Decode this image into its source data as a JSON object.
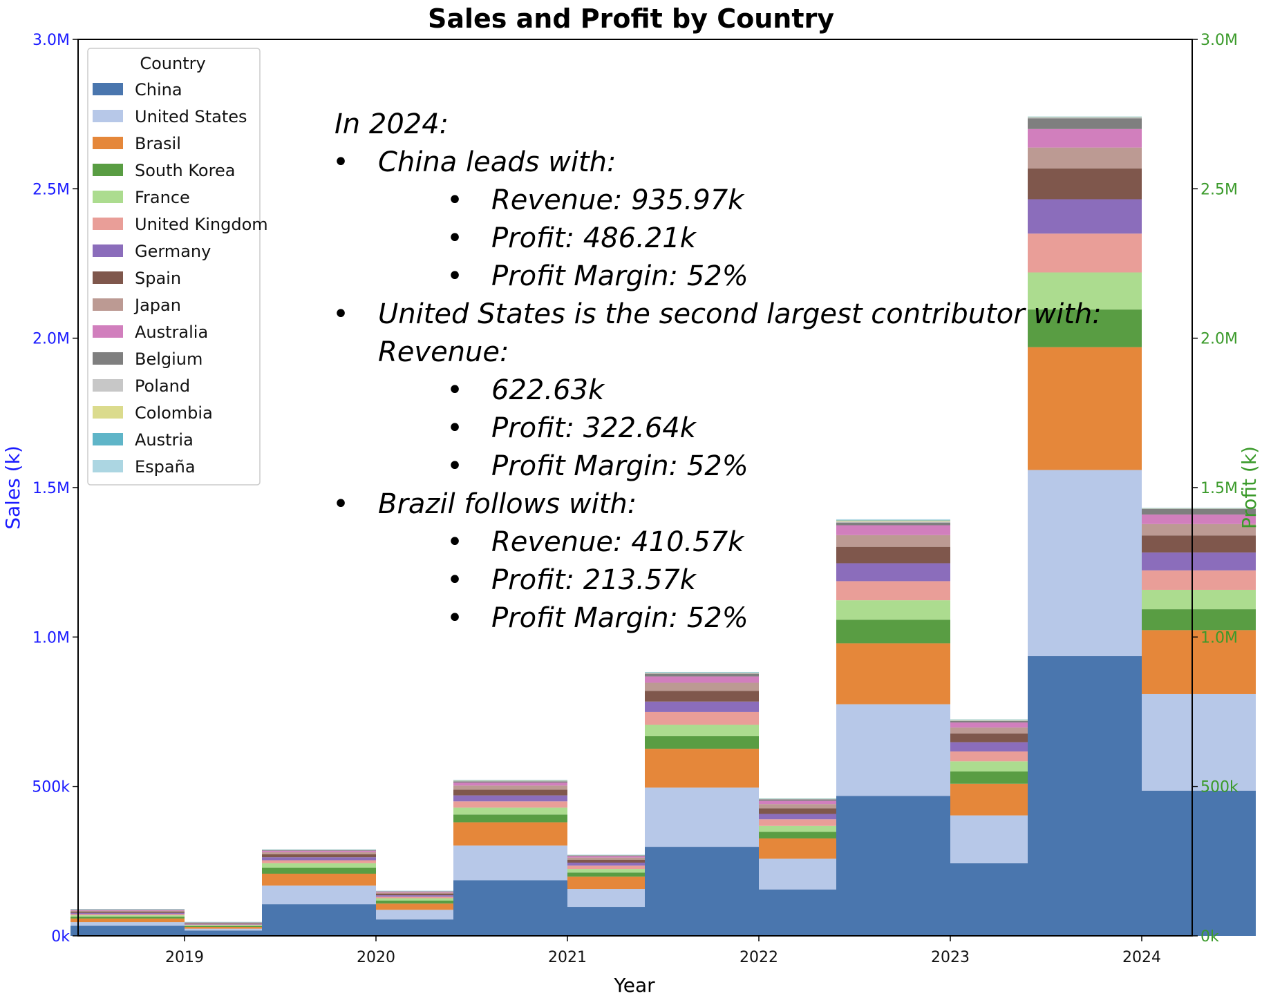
{
  "chart_data": {
    "type": "bar",
    "subtype": "grouped-stacked",
    "title": "Sales and Profit by Country",
    "xlabel": "Year",
    "ylabel_left": "Sales (k)",
    "ylabel_right": "Profit (k)",
    "left_axis_color": "#1a1aff",
    "right_axis_color": "#3a9a2a",
    "ylim": [
      0,
      3000000
    ],
    "yticks_left": [
      {
        "value": 0,
        "label": "0k"
      },
      {
        "value": 500000,
        "label": "500k"
      },
      {
        "value": 1000000,
        "label": "1.0M"
      },
      {
        "value": 1500000,
        "label": "1.5M"
      },
      {
        "value": 2000000,
        "label": "2.0M"
      },
      {
        "value": 2500000,
        "label": "2.5M"
      },
      {
        "value": 3000000,
        "label": "3.0M"
      }
    ],
    "yticks_right": [
      {
        "value": 0,
        "label": "0k"
      },
      {
        "value": 500000,
        "label": "500k"
      },
      {
        "value": 1000000,
        "label": "1.0M"
      },
      {
        "value": 1500000,
        "label": "1.5M"
      },
      {
        "value": 2000000,
        "label": "2.0M"
      },
      {
        "value": 2500000,
        "label": "2.5M"
      },
      {
        "value": 3000000,
        "label": "3.0M"
      }
    ],
    "categories": [
      "2019",
      "2020",
      "2021",
      "2022",
      "2023",
      "2024"
    ],
    "legend_title": "Country",
    "legend_position": "top-left",
    "countries": [
      {
        "name": "China",
        "color": "#4a76ae"
      },
      {
        "name": "United States",
        "color": "#b7c8e8"
      },
      {
        "name": "Brasil",
        "color": "#e5873a"
      },
      {
        "name": "South Korea",
        "color": "#599d43"
      },
      {
        "name": "France",
        "color": "#acdc8f"
      },
      {
        "name": "United Kingdom",
        "color": "#e99e98"
      },
      {
        "name": "Germany",
        "color": "#8b6dbb"
      },
      {
        "name": "Spain",
        "color": "#7f574c"
      },
      {
        "name": "Japan",
        "color": "#bc9a93"
      },
      {
        "name": "Australia",
        "color": "#d17fbd"
      },
      {
        "name": "Belgium",
        "color": "#7f7f7f"
      },
      {
        "name": "Poland",
        "color": "#c7c7c7"
      },
      {
        "name": "Colombia",
        "color": "#dbdb8d"
      },
      {
        "name": "Austria",
        "color": "#5fb5c8"
      },
      {
        "name": "España",
        "color": "#acd6e2"
      }
    ],
    "sales": [
      [
        34000,
        106000,
        186000,
        298000,
        468000,
        936000
      ],
      [
        12000,
        62000,
        116000,
        198000,
        307000,
        623000
      ],
      [
        12000,
        40000,
        78000,
        130000,
        204000,
        411000
      ],
      [
        6000,
        20000,
        26000,
        42000,
        79000,
        126000
      ],
      [
        5000,
        15000,
        23000,
        38000,
        65000,
        124000
      ],
      [
        4000,
        10000,
        21000,
        43000,
        64000,
        130000
      ],
      [
        4000,
        10000,
        20000,
        35000,
        60000,
        115000
      ],
      [
        4000,
        10000,
        19000,
        36000,
        55000,
        103000
      ],
      [
        3000,
        7000,
        14000,
        27000,
        39000,
        70000
      ],
      [
        3000,
        5000,
        10000,
        21000,
        33000,
        62000
      ],
      [
        1000,
        2000,
        4000,
        9000,
        9000,
        36000
      ],
      [
        500,
        1000,
        2000,
        3000,
        4000,
        3000
      ],
      [
        500,
        500,
        1000,
        1000,
        3000,
        1000
      ],
      [
        500,
        500,
        1000,
        1000,
        2000,
        1000
      ],
      [
        500,
        500,
        1000,
        1000,
        2000,
        1000
      ]
    ],
    "profit": [
      [
        18000,
        55000,
        97000,
        155000,
        243000,
        486000
      ],
      [
        6000,
        32000,
        60000,
        103000,
        160000,
        323000
      ],
      [
        6000,
        21000,
        41000,
        68000,
        106000,
        214000
      ],
      [
        3000,
        10000,
        14000,
        22000,
        41000,
        70000
      ],
      [
        3000,
        8000,
        12000,
        20000,
        34000,
        65000
      ],
      [
        2000,
        5000,
        11000,
        22000,
        33000,
        65000
      ],
      [
        2000,
        5000,
        10000,
        18000,
        31000,
        60000
      ],
      [
        2000,
        5000,
        10000,
        19000,
        29000,
        57000
      ],
      [
        1500,
        4000,
        7000,
        14000,
        20000,
        38000
      ],
      [
        1500,
        3000,
        5000,
        11000,
        17000,
        32000
      ],
      [
        500,
        1000,
        2000,
        5000,
        5000,
        19000
      ],
      [
        300,
        500,
        1000,
        1500,
        2000,
        1500
      ],
      [
        300,
        500,
        500,
        500,
        1500,
        500
      ],
      [
        300,
        500,
        500,
        500,
        1000,
        500
      ],
      [
        300,
        500,
        500,
        500,
        1000,
        500
      ]
    ],
    "annotation": [
      {
        "level": 0,
        "text": "In 2024:"
      },
      {
        "level": 1,
        "text": "China leads with:"
      },
      {
        "level": 2,
        "text": "Revenue: 935.97k"
      },
      {
        "level": 2,
        "text": "Profit: 486.21k"
      },
      {
        "level": 2,
        "text": "Profit Margin: 52%"
      },
      {
        "level": 1,
        "text": "United States is the second largest contributor with:"
      },
      {
        "level": 1,
        "text": "Revenue:",
        "continuation": true
      },
      {
        "level": 2,
        "text": "622.63k"
      },
      {
        "level": 2,
        "text": "Profit: 322.64k"
      },
      {
        "level": 2,
        "text": "Profit Margin: 52%"
      },
      {
        "level": 1,
        "text": "Brazil follows with:"
      },
      {
        "level": 2,
        "text": "Revenue: 410.57k"
      },
      {
        "level": 2,
        "text": "Profit: 213.57k"
      },
      {
        "level": 2,
        "text": "Profit Margin: 52%"
      }
    ]
  }
}
